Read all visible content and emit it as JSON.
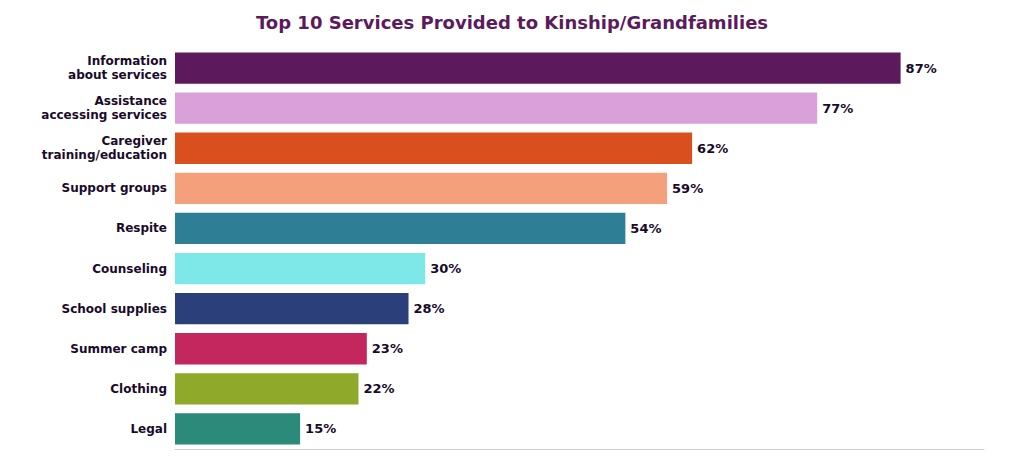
{
  "chart_data": {
    "type": "bar",
    "orientation": "horizontal",
    "title": "Top 10 Services Provided to Kinship/Grandfamilies",
    "categories": [
      "Legal",
      "Clothing",
      "Summer camp",
      "School supplies",
      "Counseling",
      "Respite",
      "Support groups",
      "Caregiver\ntraining/education",
      "Assistance\naccessing services",
      "Information\nabout services"
    ],
    "values": [
      15,
      22,
      23,
      28,
      30,
      54,
      59,
      62,
      77,
      87
    ],
    "value_labels": [
      "15%",
      "22%",
      "23%",
      "28%",
      "30%",
      "54%",
      "59%",
      "62%",
      "77%",
      "87%"
    ],
    "colors": [
      "#2b8a7a",
      "#8faa2b",
      "#c4275e",
      "#2b3f7a",
      "#7ee8e8",
      "#2e7f96",
      "#f4a07a",
      "#d94f1e",
      "#d9a0d9",
      "#5c1a5c"
    ],
    "xlim": [
      0,
      97
    ],
    "data_labels": true,
    "tick_labels": "y",
    "grid": false
  }
}
